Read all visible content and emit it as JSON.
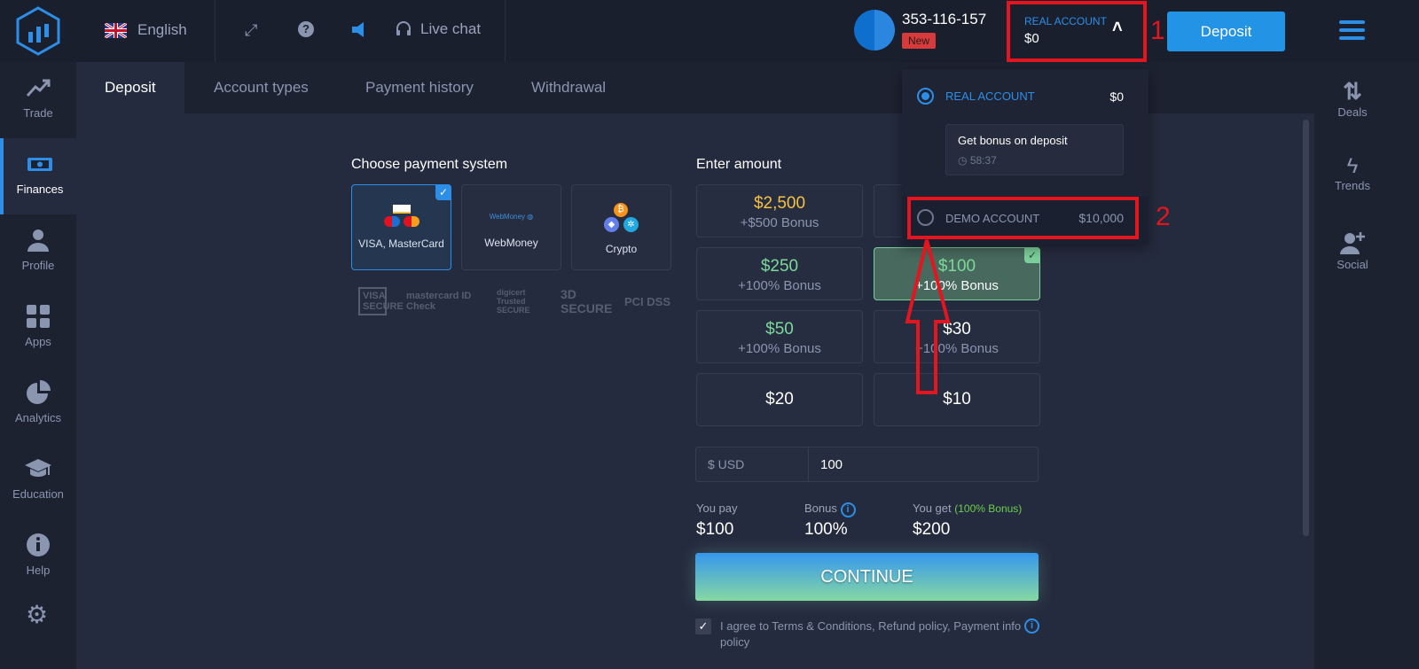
{
  "header": {
    "language": "English",
    "live_chat": "Live chat",
    "user_id": "353-116-157",
    "user_badge": "New",
    "account_label": "REAL ACCOUNT",
    "account_balance": "$0",
    "deposit_button": "Deposit"
  },
  "sidebar": {
    "items": [
      {
        "label": "Trade"
      },
      {
        "label": "Finances"
      },
      {
        "label": "Profile"
      },
      {
        "label": "Apps"
      },
      {
        "label": "Analytics"
      },
      {
        "label": "Education"
      },
      {
        "label": "Help"
      }
    ]
  },
  "right_sidebar": {
    "items": [
      {
        "label": "Deals"
      },
      {
        "label": "Trends"
      },
      {
        "label": "Social"
      }
    ]
  },
  "tabs": [
    {
      "label": "Deposit"
    },
    {
      "label": "Account types"
    },
    {
      "label": "Payment history"
    },
    {
      "label": "Withdrawal"
    }
  ],
  "payment": {
    "title": "Choose payment system",
    "methods": [
      {
        "label": "VISA, MasterCard",
        "selected": true
      },
      {
        "label": "WebMoney"
      },
      {
        "label": "Crypto"
      }
    ],
    "logo_webmoney": "WebMoney",
    "badges": [
      "VISA SECURE",
      "mastercard ID Check",
      "digicert Trusted SECURE",
      "3D SECURE",
      "PCI DSS"
    ]
  },
  "amount": {
    "title": "Enter amount",
    "options": [
      {
        "value": "$2,500",
        "bonus": "+$500 Bonus",
        "color": "#f5c242"
      },
      {
        "value": "",
        "bonus": "",
        "color": "#ffffff"
      },
      {
        "value": "$250",
        "bonus": "+100% Bonus",
        "color": "#7dd99a"
      },
      {
        "value": "$100",
        "bonus": "+100% Bonus",
        "color": "#7dd99a",
        "selected": true
      },
      {
        "value": "$50",
        "bonus": "+100% Bonus",
        "color": "#7dd99a"
      },
      {
        "value": "$30",
        "bonus": "+100% Bonus",
        "color": "#ffffff"
      },
      {
        "value": "$20",
        "bonus": "",
        "color": "#ffffff"
      },
      {
        "value": "$10",
        "bonus": "",
        "color": "#ffffff"
      }
    ],
    "currency": "$ USD",
    "input_value": "100"
  },
  "summary": {
    "pay_label": "You pay",
    "pay_value": "$100",
    "bonus_label": "Bonus",
    "bonus_value": "100%",
    "get_label": "You get",
    "get_note": "(100% Bonus)",
    "get_value": "$200"
  },
  "continue_label": "CONTINUE",
  "agree_text": "I agree to Terms & Conditions, Refund policy, Payment info policy",
  "dropdown": {
    "real_label": "REAL ACCOUNT",
    "real_balance": "$0",
    "bonus_title": "Get bonus on deposit",
    "bonus_timer": "58:37",
    "demo_label": "DEMO ACCOUNT",
    "demo_balance": "$10,000"
  },
  "annotations": {
    "step1": "1",
    "step2": "2"
  },
  "colors": {
    "accent": "#2d8ee8",
    "annotation": "#e3151f",
    "bonus_green": "#7dd99a",
    "gold": "#f5c242"
  }
}
